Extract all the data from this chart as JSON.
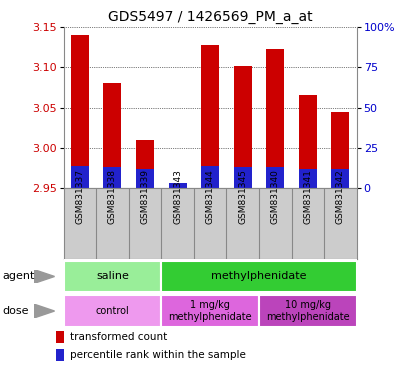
{
  "title": "GDS5497 / 1426569_PM_a_at",
  "samples": [
    "GSM831337",
    "GSM831338",
    "GSM831339",
    "GSM831343",
    "GSM831344",
    "GSM831345",
    "GSM831340",
    "GSM831341",
    "GSM831342"
  ],
  "transformed_count": [
    3.14,
    3.08,
    3.01,
    2.951,
    3.128,
    3.102,
    3.122,
    3.065,
    3.045
  ],
  "percentile_rank": [
    14,
    13,
    12,
    3,
    14,
    13,
    13,
    12,
    12
  ],
  "ylim_left": [
    2.95,
    3.15
  ],
  "yticks_left": [
    2.95,
    3.0,
    3.05,
    3.1,
    3.15
  ],
  "yticks_right": [
    0,
    25,
    50,
    75,
    100
  ],
  "bar_color": "#cc0000",
  "percentile_color": "#2222cc",
  "bar_bottom": 2.95,
  "agent_labels": [
    {
      "text": "saline",
      "spans": [
        0,
        3
      ],
      "color": "#99ee99"
    },
    {
      "text": "methylphenidate",
      "spans": [
        3,
        9
      ],
      "color": "#33cc33"
    }
  ],
  "dose_labels": [
    {
      "text": "control",
      "spans": [
        0,
        3
      ],
      "color": "#ee99ee"
    },
    {
      "text": "1 mg/kg\nmethylphenidate",
      "spans": [
        3,
        6
      ],
      "color": "#dd66dd"
    },
    {
      "text": "10 mg/kg\nmethylphenidate",
      "spans": [
        6,
        9
      ],
      "color": "#bb44bb"
    }
  ],
  "legend_red_label": "transformed count",
  "legend_blue_label": "percentile rank within the sample",
  "tick_label_color_left": "#cc0000",
  "tick_label_color_right": "#0000cc",
  "bg_color": "#ffffff",
  "bar_width": 0.55,
  "sample_bg_color": "#cccccc",
  "sample_border_color": "#888888"
}
